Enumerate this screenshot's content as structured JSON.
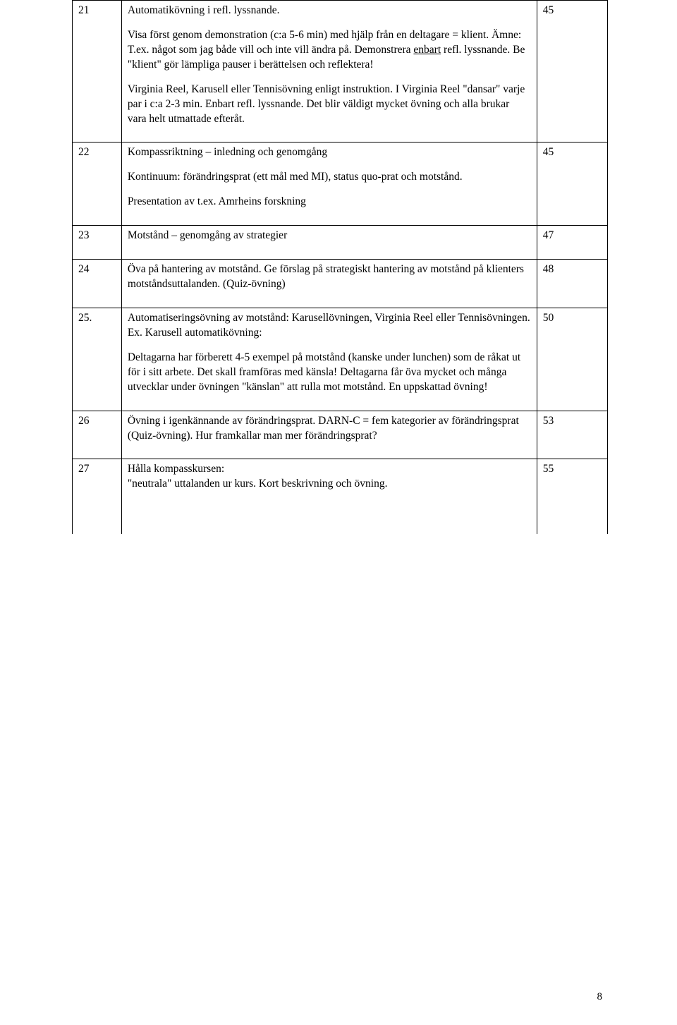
{
  "rows": [
    {
      "num": "21",
      "right": "45",
      "paras": [
        {
          "text": "Automatikövning i refl. lyssnande."
        },
        {
          "segments": [
            {
              "t": "Visa först genom demonstration (c:a 5-6 min) med hjälp från en deltagare = klient. Ämne: T.ex. något som jag både vill och inte vill ändra på. Demonstrera "
            },
            {
              "t": "enbart",
              "u": true
            },
            {
              "t": "  refl. lyssnande. Be \"klient\" gör lämpliga pauser i berättelsen och reflektera!"
            }
          ]
        },
        {
          "text": "Virginia Reel, Karusell eller Tennisövning enligt instruktion. I Virginia Reel \"dansar\" varje par  i c:a 2-3 min. Enbart refl. lyssnande. Det blir väldigt mycket övning och alla brukar vara helt utmattade efteråt."
        }
      ]
    },
    {
      "num": "22",
      "right": "45",
      "paras": [
        {
          "text": "Kompassriktning – inledning och genomgång"
        },
        {
          "text": "Kontinuum: förändringsprat (ett mål med MI), status quo-prat och motstånd."
        },
        {
          "text": "Presentation av t.ex. Amrheins forskning"
        }
      ]
    },
    {
      "num": "23",
      "right": "47",
      "paras": [
        {
          "text": "Motstånd – genomgång av strategier"
        }
      ]
    },
    {
      "num": "24",
      "right": "48",
      "paras": [
        {
          "text": "Öva på hantering av motstånd. Ge förslag på strategiskt hantering av motstånd på klienters motståndsuttalanden. (Quiz-övning)"
        }
      ]
    },
    {
      "num": "25.",
      "right": "50",
      "paras": [
        {
          "text": "Automatiseringsövning av motstånd: Karusellövningen,  Virginia Reel eller Tennisövningen.\nEx. Karusell automatikövning:"
        },
        {
          "text": "Deltagarna har förberett 4-5 exempel på motstånd (kanske under lunchen) som de råkat ut för i sitt arbete. Det skall framföras med känsla! Deltagarna får öva mycket och många utvecklar under övningen \"känslan\" att rulla mot motstånd. En uppskattad övning!"
        }
      ]
    },
    {
      "num": "26",
      "right": "53",
      "paras": [
        {
          "text": "Övning i igenkännande av förändringsprat. DARN-C = fem kategorier av förändringsprat (Quiz-övning). Hur framkallar man mer förändringsprat?"
        }
      ]
    },
    {
      "num": "27",
      "right": "55",
      "open": true,
      "paras": [
        {
          "text": "Hålla kompasskursen:\n\"neutrala\" uttalanden ur kurs. Kort beskrivning och övning."
        }
      ]
    }
  ],
  "pageNumber": "8"
}
